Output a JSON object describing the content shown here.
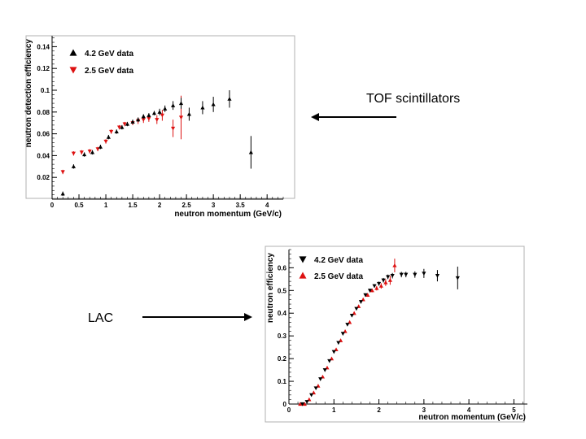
{
  "annotations": {
    "tof_label": "TOF scintillators",
    "lac_label": "LAC"
  },
  "colors": {
    "black": "#000000",
    "red": "#dd1111",
    "frame": "#b0b0b0"
  },
  "chart_data": [
    {
      "type": "scatter",
      "title": "",
      "xlabel": "neutron momentum (GeV/c)",
      "ylabel": "neutron detection efficiency",
      "xlim": [
        0,
        4.3
      ],
      "ylim": [
        0,
        0.15
      ],
      "xticks": [
        0,
        0.5,
        1,
        1.5,
        2,
        2.5,
        3,
        3.5,
        4
      ],
      "yticks": [
        0.02,
        0.04,
        0.06,
        0.08,
        0.1,
        0.12,
        0.14
      ],
      "tick_labels_x": [
        "0",
        "0.5",
        "1",
        "1.5",
        "2",
        "2.5",
        "3",
        "3.5",
        "4"
      ],
      "tick_labels_y": [
        "0.02",
        "0.04",
        "0.06",
        "0.08",
        "0.1",
        "0.12",
        "0.14"
      ],
      "legend_position": "top-left",
      "series": [
        {
          "name": "4.2 GeV data",
          "marker": "triangle-up",
          "color": "#000000",
          "x": [
            0.2,
            0.4,
            0.6,
            0.75,
            0.9,
            1.05,
            1.2,
            1.3,
            1.4,
            1.5,
            1.6,
            1.7,
            1.8,
            1.9,
            2.0,
            2.1,
            2.25,
            2.4,
            2.55,
            2.8,
            3.0,
            3.3,
            3.7
          ],
          "y": [
            0.005,
            0.03,
            0.041,
            0.043,
            0.048,
            0.057,
            0.062,
            0.066,
            0.069,
            0.071,
            0.073,
            0.076,
            0.077,
            0.079,
            0.08,
            0.083,
            0.086,
            0.088,
            0.078,
            0.084,
            0.087,
            0.092,
            0.043
          ],
          "yerr": [
            0.002,
            0.002,
            0.002,
            0.002,
            0.002,
            0.002,
            0.002,
            0.002,
            0.002,
            0.002,
            0.002,
            0.002,
            0.002,
            0.002,
            0.003,
            0.003,
            0.004,
            0.005,
            0.006,
            0.006,
            0.007,
            0.008,
            0.015
          ]
        },
        {
          "name": "2.5 GeV data",
          "marker": "triangle-down",
          "color": "#dd1111",
          "x": [
            0.2,
            0.4,
            0.55,
            0.7,
            0.85,
            1.0,
            1.1,
            1.25,
            1.35,
            1.5,
            1.6,
            1.7,
            1.8,
            1.95,
            2.05,
            2.25,
            2.4
          ],
          "y": [
            0.025,
            0.042,
            0.043,
            0.044,
            0.046,
            0.053,
            0.062,
            0.066,
            0.069,
            0.07,
            0.072,
            0.073,
            0.074,
            0.073,
            0.077,
            0.065,
            0.075
          ],
          "yerr": [
            0.002,
            0.002,
            0.002,
            0.002,
            0.002,
            0.002,
            0.002,
            0.002,
            0.002,
            0.002,
            0.003,
            0.003,
            0.003,
            0.004,
            0.005,
            0.008,
            0.02
          ]
        }
      ]
    },
    {
      "type": "scatter",
      "title": "",
      "xlabel": "neutron momentum (GeV/c)",
      "ylabel": "neutron efficiency",
      "xlim": [
        0,
        5.3
      ],
      "ylim": [
        0,
        0.68
      ],
      "xticks": [
        0,
        1,
        2,
        3,
        4,
        5
      ],
      "yticks": [
        0,
        0.1,
        0.2,
        0.3,
        0.4,
        0.5,
        0.6
      ],
      "tick_labels_x": [
        "0",
        "1",
        "2",
        "3",
        "4",
        "5"
      ],
      "tick_labels_y": [
        "0",
        "0.1",
        "0.2",
        "0.3",
        "0.4",
        "0.5",
        "0.6"
      ],
      "legend_position": "top-left",
      "series": [
        {
          "name": "4.2 GeV data",
          "marker": "triangle-down",
          "color": "#000000",
          "x": [
            0.3,
            0.4,
            0.5,
            0.6,
            0.7,
            0.8,
            0.9,
            1.0,
            1.1,
            1.2,
            1.3,
            1.4,
            1.5,
            1.6,
            1.7,
            1.8,
            1.9,
            2.0,
            2.1,
            2.2,
            2.3,
            2.5,
            2.6,
            2.8,
            3.0,
            3.3,
            3.75
          ],
          "y": [
            0.0,
            0.01,
            0.04,
            0.07,
            0.11,
            0.15,
            0.19,
            0.23,
            0.27,
            0.31,
            0.35,
            0.39,
            0.42,
            0.45,
            0.48,
            0.5,
            0.52,
            0.53,
            0.545,
            0.56,
            0.565,
            0.57,
            0.57,
            0.57,
            0.575,
            0.565,
            0.555
          ],
          "yerr": [
            0.005,
            0.005,
            0.005,
            0.005,
            0.005,
            0.005,
            0.005,
            0.005,
            0.006,
            0.006,
            0.006,
            0.006,
            0.006,
            0.007,
            0.007,
            0.008,
            0.008,
            0.009,
            0.01,
            0.01,
            0.012,
            0.012,
            0.012,
            0.014,
            0.02,
            0.025,
            0.05
          ]
        },
        {
          "name": "2.5 GeV data",
          "marker": "triangle-up",
          "color": "#dd1111",
          "x": [
            0.25,
            0.35,
            0.45,
            0.55,
            0.65,
            0.75,
            0.85,
            0.95,
            1.05,
            1.15,
            1.25,
            1.35,
            1.45,
            1.55,
            1.65,
            1.75,
            1.85,
            1.95,
            2.05,
            2.15,
            2.25,
            2.35
          ],
          "y": [
            0.0,
            0.0,
            0.02,
            0.05,
            0.08,
            0.12,
            0.16,
            0.2,
            0.24,
            0.28,
            0.32,
            0.36,
            0.4,
            0.43,
            0.46,
            0.48,
            0.5,
            0.51,
            0.52,
            0.535,
            0.545,
            0.61
          ],
          "yerr": [
            0.005,
            0.005,
            0.005,
            0.005,
            0.005,
            0.005,
            0.005,
            0.005,
            0.006,
            0.006,
            0.006,
            0.006,
            0.006,
            0.007,
            0.007,
            0.008,
            0.008,
            0.01,
            0.012,
            0.015,
            0.02,
            0.03
          ]
        }
      ]
    }
  ]
}
